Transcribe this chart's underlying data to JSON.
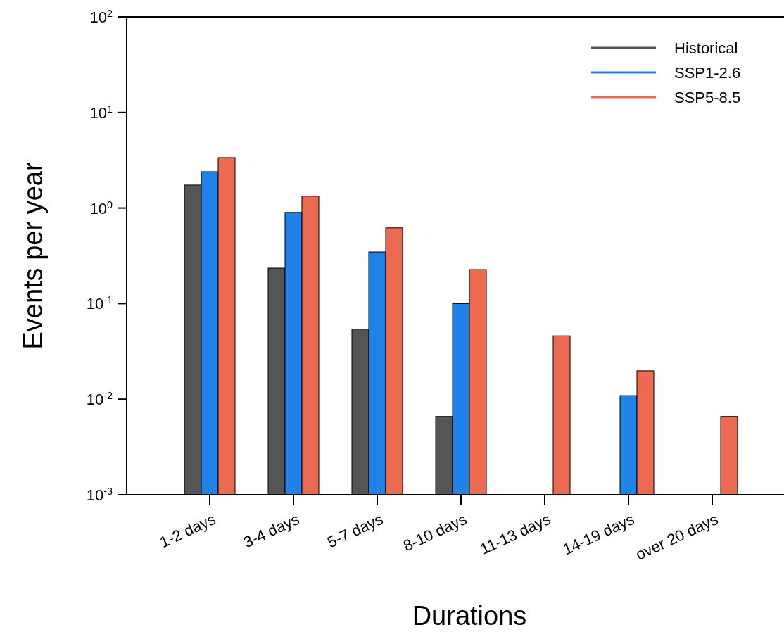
{
  "chart_data": {
    "type": "bar",
    "xlabel": "Durations",
    "ylabel": "Events per year",
    "categories": [
      "1-2 days",
      "3-4 days",
      "5-7 days",
      "8-10 days",
      "11-13 days",
      "14-19 days",
      "over 20 days"
    ],
    "series": [
      {
        "name": "Historical",
        "color": "#555555",
        "values": [
          1.74,
          0.235,
          0.054,
          0.0066,
          null,
          null,
          null
        ]
      },
      {
        "name": "SSP1-2.6",
        "color": "#1f82e8",
        "values": [
          2.4,
          0.9,
          0.347,
          0.1,
          null,
          0.0109,
          null
        ]
      },
      {
        "name": "SSP5-8.5",
        "color": "#ec6a50",
        "values": [
          3.37,
          1.33,
          0.62,
          0.227,
          0.046,
          0.0198,
          0.0066
        ]
      }
    ],
    "log": "y",
    "ylim": [
      0.001,
      100
    ],
    "yticks": [
      {
        "value": 0.001,
        "label": "10$^{-3}$"
      },
      {
        "value": 0.01,
        "label": "10$^{-2}$"
      },
      {
        "value": 0.1,
        "label": "10$^{-1}$"
      },
      {
        "value": 1,
        "label": "10$^{0}$"
      },
      {
        "value": 10,
        "label": "10$^{1}$"
      },
      {
        "value": 100,
        "label": "10$^{2}$"
      }
    ],
    "grid": false,
    "legend": "top right"
  }
}
